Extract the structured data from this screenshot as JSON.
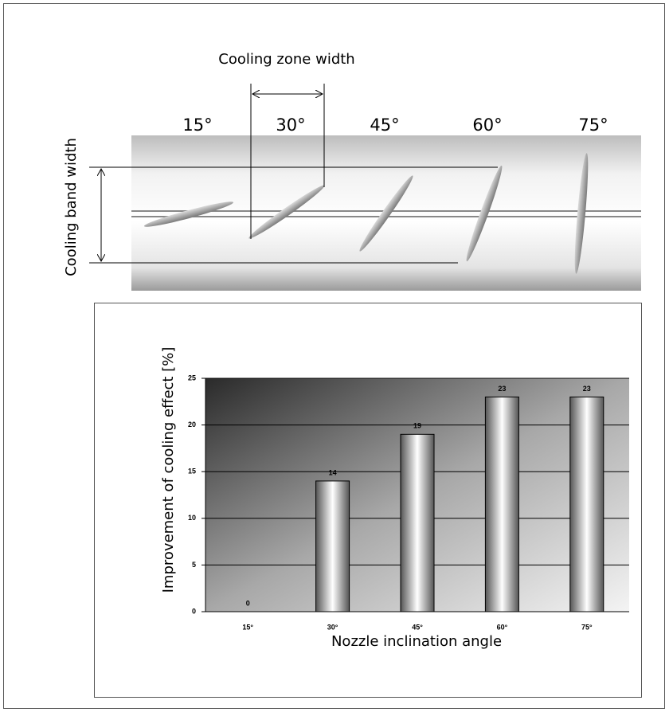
{
  "diagram": {
    "zone_label": "Cooling zone width",
    "band_label": "Cooling band width",
    "angles": [
      "15°",
      "30°",
      "45°",
      "60°",
      "75°"
    ]
  },
  "chart_data": {
    "type": "bar",
    "categories": [
      "15°",
      "30°",
      "45°",
      "60°",
      "75°"
    ],
    "values": [
      0,
      14,
      19,
      23,
      23
    ],
    "ylim": [
      0,
      25
    ],
    "yticks": [
      0,
      5,
      10,
      15,
      20,
      25
    ],
    "grid": true,
    "xlabel": "Nozzle inclination angle",
    "ylabel": "Improvement of cooling effect  [%]"
  }
}
